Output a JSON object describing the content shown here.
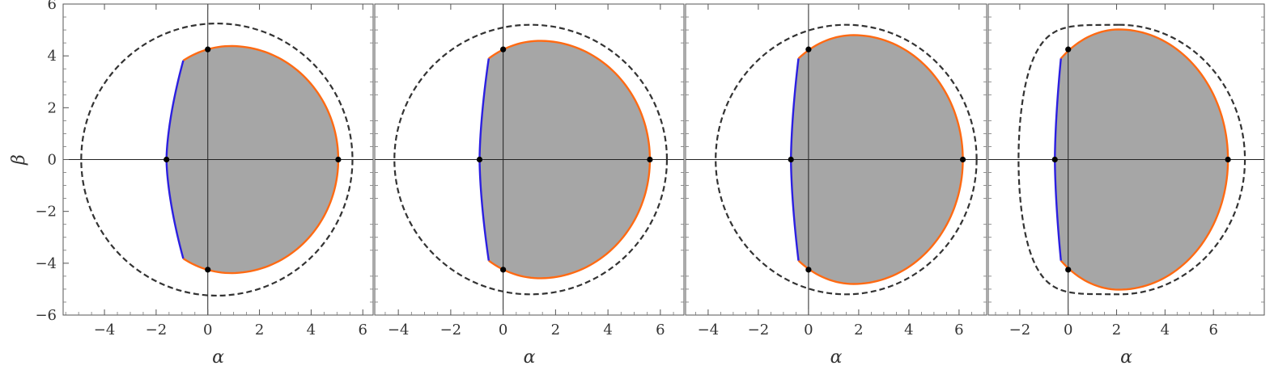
{
  "figure": {
    "ylabel": "β",
    "colors": {
      "shadow_fill": "#a6a6a6",
      "prograde_edge": "#ff6a13",
      "retrograde_edge": "#2b1fe0",
      "outer_boundary": "#333333",
      "marker": "#000000"
    }
  },
  "chart_data": [
    {
      "type": "scatter",
      "xlabel": "α",
      "ylabel": "β",
      "xlim": [
        -5.6,
        6.4
      ],
      "ylim": [
        -6,
        6
      ],
      "x_ticks": [
        -4,
        -2,
        0,
        2,
        4,
        6
      ],
      "x_tick_labels": [
        "−4",
        "−2",
        "0",
        "2",
        "4",
        "6"
      ],
      "y_ticks": [
        -6,
        -4,
        -2,
        0,
        2,
        4,
        6
      ],
      "y_tick_labels": [
        "−6",
        "−4",
        "−2",
        "0",
        "2",
        "4",
        "6"
      ],
      "grid": false,
      "shadow": {
        "x_left": -1.6,
        "x_right": 5.05,
        "x_top_join": -0.95,
        "y_top_join": 3.82,
        "y_max": 4.38,
        "x_at_ymax": 0.9,
        "x_bottom_join": -0.95
      },
      "outer_boundary": {
        "shape": "circle",
        "center": [
          0.35,
          0
        ],
        "radius": 5.25
      },
      "points": [
        {
          "x": -1.6,
          "y": 0
        },
        {
          "x": 5.05,
          "y": 0
        },
        {
          "x": 0,
          "y": 4.25
        },
        {
          "x": 0,
          "y": -4.25
        }
      ]
    },
    {
      "type": "scatter",
      "xlabel": "α",
      "ylabel": "",
      "xlim": [
        -4.9,
        6.9
      ],
      "ylim": [
        -6,
        6
      ],
      "x_ticks": [
        -4,
        -2,
        0,
        2,
        4,
        6
      ],
      "x_tick_labels": [
        "−4",
        "−2",
        "0",
        "2",
        "4",
        "6"
      ],
      "y_ticks": [],
      "grid": false,
      "shadow": {
        "x_left": -0.9,
        "x_right": 5.6,
        "x_top_join": -0.55,
        "y_top_join": 3.9,
        "y_max": 4.58,
        "x_at_ymax": 1.4,
        "x_bottom_join": -0.55
      },
      "outer_boundary": {
        "shape": "circle",
        "center": [
          1.05,
          0
        ],
        "radius": 5.2
      },
      "points": [
        {
          "x": -0.9,
          "y": 0
        },
        {
          "x": 5.6,
          "y": 0
        },
        {
          "x": 0,
          "y": 4.25
        },
        {
          "x": 0,
          "y": -4.25
        }
      ]
    },
    {
      "type": "scatter",
      "xlabel": "α",
      "ylabel": "",
      "xlim": [
        -4.9,
        7.1
      ],
      "ylim": [
        -6,
        6
      ],
      "x_ticks": [
        -4,
        -2,
        0,
        2,
        4,
        6
      ],
      "x_tick_labels": [
        "−4",
        "−2",
        "0",
        "2",
        "4",
        "6"
      ],
      "y_ticks": [],
      "grid": false,
      "shadow": {
        "x_left": -0.7,
        "x_right": 6.15,
        "x_top_join": -0.4,
        "y_top_join": 3.9,
        "y_max": 4.8,
        "x_at_ymax": 1.8,
        "x_bottom_join": -0.4
      },
      "outer_boundary": {
        "shape": "circle",
        "center": [
          1.5,
          0
        ],
        "radius": 5.2
      },
      "points": [
        {
          "x": -0.7,
          "y": 0
        },
        {
          "x": 6.15,
          "y": 0
        },
        {
          "x": 0,
          "y": 4.25
        },
        {
          "x": 0,
          "y": -4.25
        }
      ]
    },
    {
      "type": "scatter",
      "xlabel": "α",
      "ylabel": "",
      "xlim": [
        -3.3,
        8.1
      ],
      "ylim": [
        -6,
        6
      ],
      "x_ticks": [
        -2,
        0,
        2,
        4,
        6
      ],
      "x_tick_labels": [
        "−2",
        "0",
        "2",
        "4",
        "6"
      ],
      "y_ticks": [],
      "grid": false,
      "shadow": {
        "x_left": -0.55,
        "x_right": 6.6,
        "x_top_join": -0.3,
        "y_top_join": 3.9,
        "y_max": 5.02,
        "x_at_ymax": 2.1,
        "x_bottom_join": -0.3
      },
      "outer_boundary": {
        "shape": "rounded",
        "x_left": -2.05,
        "center_x": 2.1,
        "radius": 5.2
      },
      "points": [
        {
          "x": -0.55,
          "y": 0
        },
        {
          "x": 6.6,
          "y": 0
        },
        {
          "x": 0,
          "y": 4.25
        },
        {
          "x": 0,
          "y": -4.25
        }
      ]
    }
  ]
}
